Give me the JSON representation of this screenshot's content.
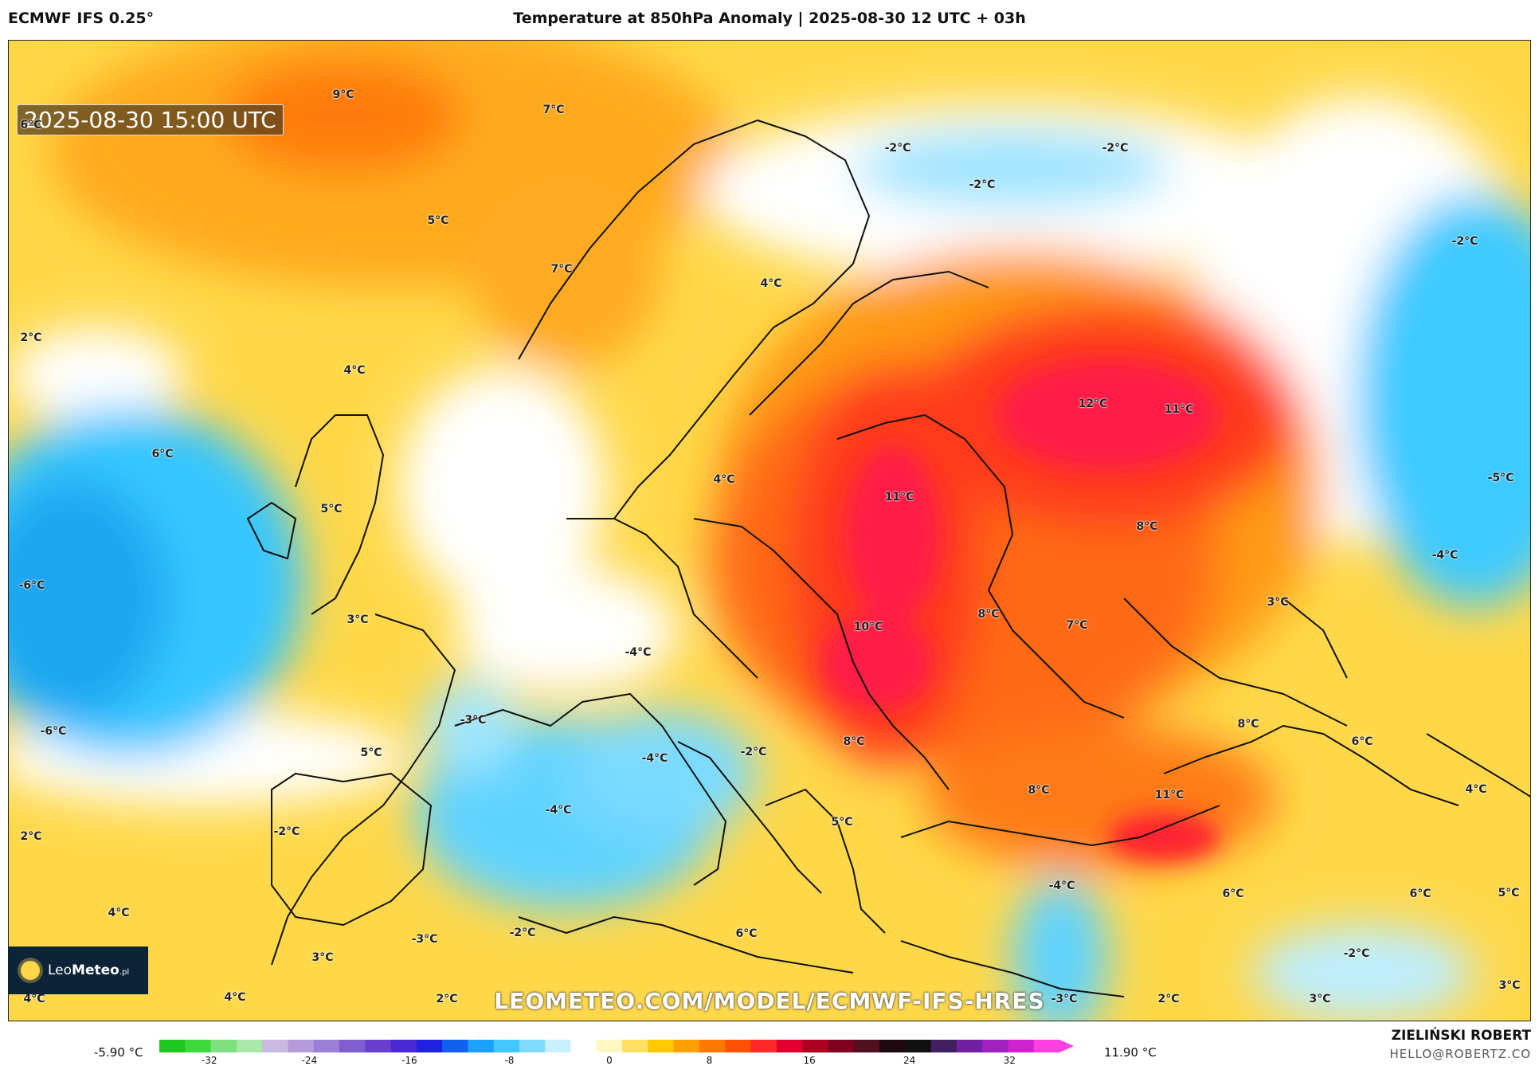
{
  "header": {
    "model": "ECMWF IFS 0.25°",
    "title": "Temperature at 850hPa Anomaly | 2025-08-30 12 UTC + 03h"
  },
  "valid_time": "2025-08-30 15:00 UTC",
  "map_labels": [
    {
      "text": "9°C"
    },
    {
      "text": "7°C"
    },
    {
      "text": "6°C"
    },
    {
      "text": "5°C"
    },
    {
      "text": "7°C"
    },
    {
      "text": "4°C"
    },
    {
      "text": "2°C"
    },
    {
      "text": "4°C"
    },
    {
      "text": "6°C"
    },
    {
      "text": "5°C"
    },
    {
      "text": "-6°C"
    },
    {
      "text": "3°C"
    },
    {
      "text": "-6°C"
    },
    {
      "text": "5°C"
    },
    {
      "text": "2°C"
    },
    {
      "text": "-2°C"
    },
    {
      "text": "4°C"
    },
    {
      "text": "3°C"
    },
    {
      "text": "4°C"
    },
    {
      "text": "4°C"
    },
    {
      "text": "2°C"
    },
    {
      "text": "-3°C"
    },
    {
      "text": "-2°C"
    },
    {
      "text": "-3°C"
    },
    {
      "text": "-4°C"
    },
    {
      "text": "-4°C"
    },
    {
      "text": "-4°C"
    },
    {
      "text": "-2°C"
    },
    {
      "text": "4°C"
    },
    {
      "text": "11°C"
    },
    {
      "text": "10°C"
    },
    {
      "text": "8°C"
    },
    {
      "text": "6°C"
    },
    {
      "text": "5°C"
    },
    {
      "text": "8°C"
    },
    {
      "text": "8°C"
    },
    {
      "text": "7°C"
    },
    {
      "text": "12°C"
    },
    {
      "text": "11°C"
    },
    {
      "text": "8°C"
    },
    {
      "text": "11°C"
    },
    {
      "text": "-4°C"
    },
    {
      "text": "-3°C"
    },
    {
      "text": "-2°C"
    },
    {
      "text": "-2°C"
    },
    {
      "text": "-2°C"
    },
    {
      "text": "-2°C"
    },
    {
      "text": "-5°C"
    },
    {
      "text": "-4°C"
    },
    {
      "text": "3°C"
    },
    {
      "text": "8°C"
    },
    {
      "text": "6°C"
    },
    {
      "text": "4°C"
    },
    {
      "text": "6°C"
    },
    {
      "text": "6°C"
    },
    {
      "text": "5°C"
    },
    {
      "text": "-2°C"
    },
    {
      "text": "3°C"
    },
    {
      "text": "2°C"
    },
    {
      "text": "3°C"
    }
  ],
  "logo": {
    "brand_light": "Leo",
    "brand_bold": "Meteo",
    "suffix": ".pl"
  },
  "watermark": "LEOMETEO.COM/MODEL/ECMWF-IFS-HRES",
  "colorbar": {
    "min_label": "-5.90 °C",
    "max_label": "11.90 °C",
    "ticks": [
      "-32",
      "-24",
      "-16",
      "-8",
      "0",
      "8",
      "16",
      "24",
      "32"
    ],
    "tick_values": [
      -32,
      -24,
      -16,
      -8,
      0,
      8,
      16,
      24,
      32
    ],
    "range": [
      -36,
      36
    ]
  },
  "author": "ZIELIŃSKI ROBERT",
  "email": "HELLO@ROBERTZ.CO"
}
